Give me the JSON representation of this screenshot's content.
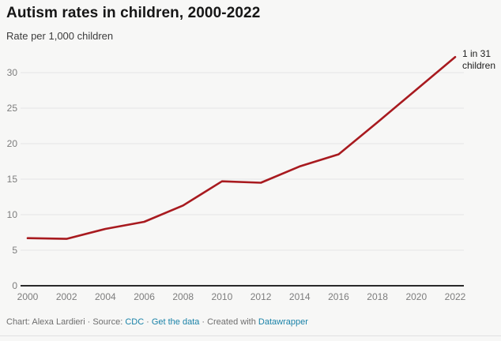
{
  "header": {
    "title": "Autism rates in children, 2000-2022",
    "subtitle": "Rate per 1,000 children"
  },
  "chart_data": {
    "type": "line",
    "title": "Autism rates in children, 2000-2022",
    "ylabel": "Rate per 1,000 children",
    "xlabel": "",
    "x": [
      2000,
      2002,
      2004,
      2006,
      2008,
      2010,
      2012,
      2014,
      2016,
      2018,
      2020,
      2022
    ],
    "series": [
      {
        "name": "Autism rate per 1,000 children",
        "color": "#a81a1f",
        "values": [
          6.7,
          6.6,
          8.0,
          9.0,
          11.3,
          14.7,
          14.5,
          16.8,
          18.5,
          23.0,
          27.6,
          32.2
        ]
      }
    ],
    "yticks": [
      0,
      5,
      10,
      15,
      20,
      25,
      30
    ],
    "ylim": [
      0,
      33
    ],
    "grid": "horizontal-only",
    "legend_position": "none",
    "annotation": {
      "line1": "1 in 31",
      "line2": "children"
    }
  },
  "footer": {
    "chart_credit": "Chart: Alexa Lardieri",
    "separator": "·",
    "source_label": "Source:",
    "source_link": "CDC",
    "get_data_link": "Get the data",
    "created_label": "Created with",
    "builder_link": "Datawrapper"
  },
  "colors": {
    "line": "#a81a1f",
    "background": "#f7f7f6",
    "gridline": "#e5e5e5",
    "axis": "#2a2a2a",
    "tick_label": "#7d7d7d",
    "link": "#1a82a8",
    "title": "#161616"
  }
}
